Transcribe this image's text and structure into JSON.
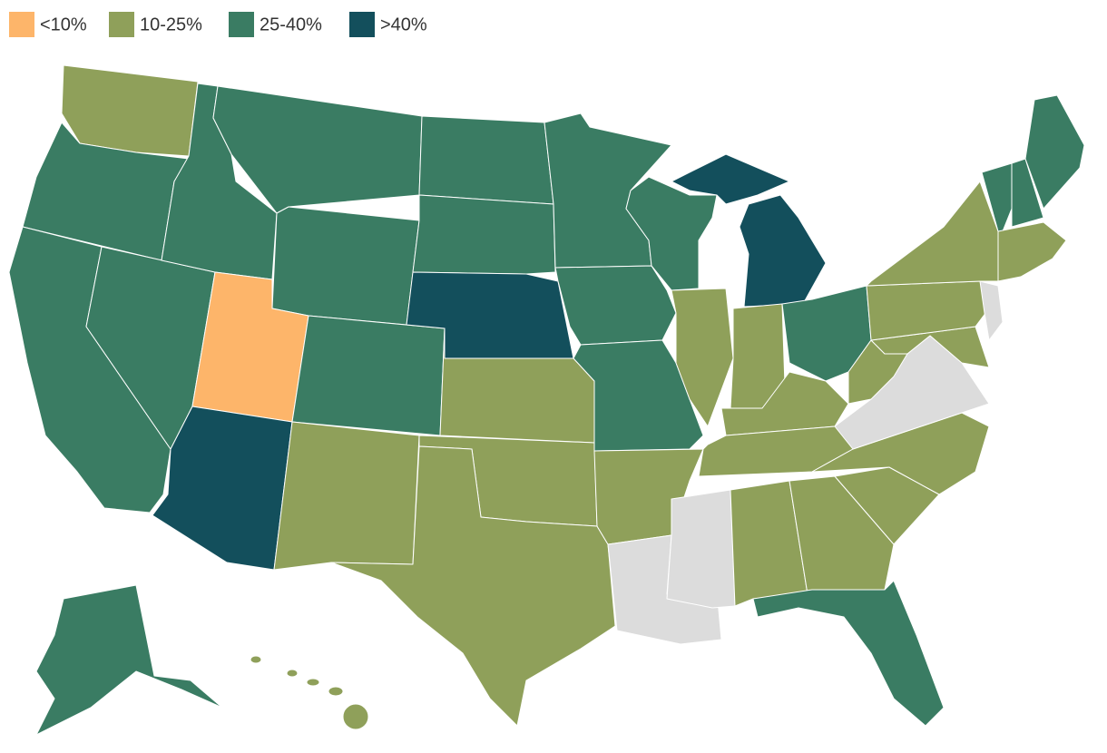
{
  "legend": {
    "items": [
      {
        "label": "<10%",
        "color": "#fdb56a"
      },
      {
        "label": "10-25%",
        "color": "#8fa05a"
      },
      {
        "label": "25-40%",
        "color": "#3a7c63"
      },
      {
        "label": ">40%",
        "color": "#134f5c"
      }
    ]
  }
}
